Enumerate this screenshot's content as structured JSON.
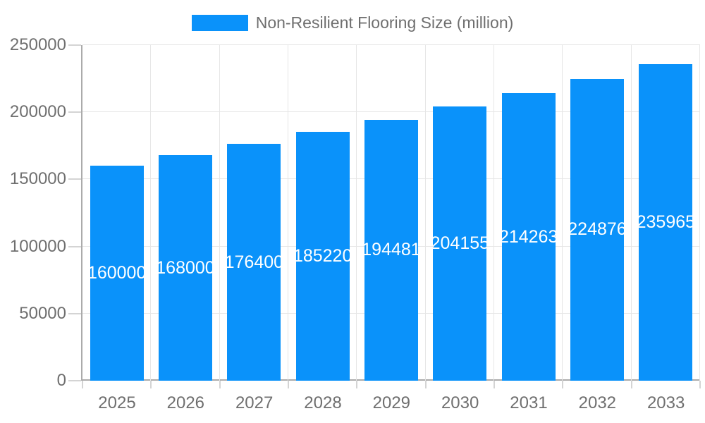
{
  "legend": {
    "label": "Non-Resilient Flooring Size (million)"
  },
  "colors": {
    "bar": "#0A92FA",
    "bar_label": "#FFFFFF",
    "axis_line": "#ABABAB",
    "gridline": "#E6E6E6",
    "tick": "#D4D4D4",
    "label_text": "#6F6F6F"
  },
  "chart_data": {
    "type": "bar",
    "title": "",
    "categories": [
      "2025",
      "2026",
      "2027",
      "2028",
      "2029",
      "2030",
      "2031",
      "2032",
      "2033"
    ],
    "series": [
      {
        "name": "Non-Resilient Flooring Size (million)",
        "values": [
          160000,
          168000,
          176400,
          185220,
          194481,
          204155,
          214263,
          224876,
          235965
        ]
      }
    ],
    "xlabel": "",
    "ylabel": "",
    "ylim": [
      0,
      250000
    ],
    "yticks": [
      0,
      50000,
      100000,
      150000,
      200000,
      250000
    ],
    "grid": true,
    "legend_position": "top-center",
    "value_labels": "inside-center-white"
  }
}
